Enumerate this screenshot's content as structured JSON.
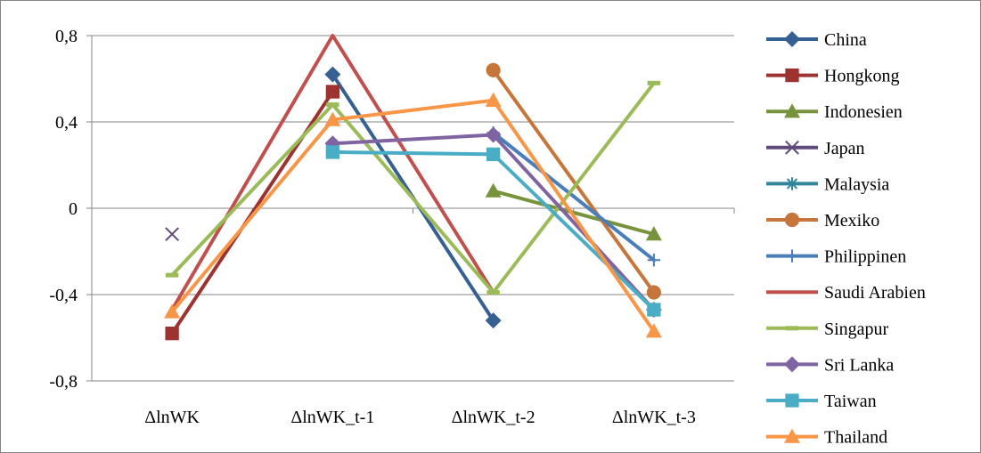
{
  "chart_data": {
    "type": "line",
    "title": "",
    "xlabel": "",
    "ylabel": "",
    "categories": [
      "ΔlnWK",
      "ΔlnWK_t-1",
      "ΔlnWK_t-2",
      "ΔlnWK_t-3"
    ],
    "ylim": [
      -0.8,
      0.8
    ],
    "yticks": [
      0.8,
      0.4,
      0,
      -0.4,
      -0.8
    ],
    "ytick_labels": [
      "0,8",
      "0,4",
      "0",
      "-0,4",
      "-0,8"
    ],
    "grid": "horizontal",
    "legend_position": "right",
    "series": [
      {
        "name": "China",
        "color": "#376092",
        "marker": "diamond",
        "values": [
          null,
          0.62,
          -0.52,
          null
        ]
      },
      {
        "name": "Hongkong",
        "color": "#9C3330",
        "marker": "square",
        "values": [
          -0.58,
          0.54,
          null,
          null
        ]
      },
      {
        "name": "Indonesien",
        "color": "#77933C",
        "marker": "triangle",
        "values": [
          null,
          null,
          0.08,
          -0.12
        ]
      },
      {
        "name": "Japan",
        "color": "#604A7B",
        "marker": "x",
        "values": [
          -0.12,
          null,
          null,
          null
        ]
      },
      {
        "name": "Malaysia",
        "color": "#31859C",
        "marker": "star",
        "values": [
          null,
          null,
          null,
          null
        ]
      },
      {
        "name": "Mexiko",
        "color": "#C6763A",
        "marker": "circle",
        "values": [
          null,
          null,
          0.64,
          -0.39
        ]
      },
      {
        "name": "Philippinen",
        "color": "#4A7EBB",
        "marker": "plus",
        "values": [
          null,
          null,
          0.35,
          -0.24
        ]
      },
      {
        "name": "Saudi Arabien",
        "color": "#C0504D",
        "marker": "none",
        "values": [
          -0.47,
          0.8,
          -0.39,
          null
        ]
      },
      {
        "name": "Singapur",
        "color": "#9BBB59",
        "marker": "dash",
        "values": [
          -0.31,
          0.48,
          -0.39,
          0.58
        ]
      },
      {
        "name": "Sri Lanka",
        "color": "#8064A2",
        "marker": "diamond",
        "values": [
          null,
          0.3,
          0.34,
          -0.47
        ]
      },
      {
        "name": "Taiwan",
        "color": "#4BACC6",
        "marker": "square",
        "values": [
          null,
          0.26,
          0.25,
          -0.47
        ]
      },
      {
        "name": "Thailand",
        "color": "#F79646",
        "marker": "triangle",
        "values": [
          -0.48,
          0.41,
          0.5,
          -0.57
        ]
      }
    ]
  }
}
